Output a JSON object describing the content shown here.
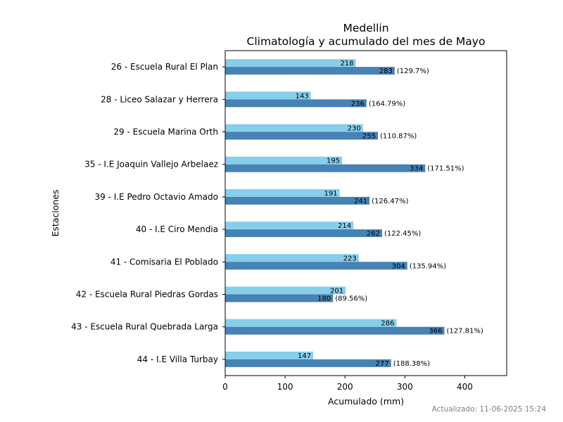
{
  "chart_data": {
    "type": "bar",
    "orientation": "horizontal",
    "title": "Medellin",
    "subtitle": "Climatología y acumulado del mes de Mayo",
    "xlabel": "Acumulado (mm)",
    "ylabel": "Estaciones",
    "xlim": [
      0,
      470
    ],
    "xticks": [
      0,
      100,
      200,
      300,
      400
    ],
    "grid": false,
    "categories": [
      "26 - Escuela Rural El Plan",
      "28 - Liceo Salazar y Herrera",
      "29 - Escuela Marina Orth",
      "35 - I.E Joaquin Vallejo Arbelaez ",
      "39 - I.E Pedro Octavio Amado",
      "40 - I.E Ciro Mendia",
      "41 - Comisaria El Poblado",
      "42 - Escuela Rural Piedras Gordas",
      "43 - Escuela Rural Quebrada Larga",
      "44 - I.E Villa Turbay"
    ],
    "series": [
      {
        "values": [
          218,
          143,
          230,
          195,
          191,
          214,
          223,
          201,
          286,
          147
        ],
        "color": "#87ceeb"
      },
      {
        "values": [
          283,
          236,
          255,
          334,
          241,
          262,
          304,
          180,
          366,
          277
        ],
        "color": "#4682b4",
        "annotations": [
          "(129.7%)",
          "(164.79%)",
          "(110.87%)",
          "(171.51%)",
          "(126.47%)",
          "(122.45%)",
          "(135.94%)",
          "(89.56%)",
          "(127.81%)",
          "(188.38%)"
        ]
      }
    ]
  },
  "footer": {
    "updated": "Actualizado: 11-06-2025 15:24"
  }
}
